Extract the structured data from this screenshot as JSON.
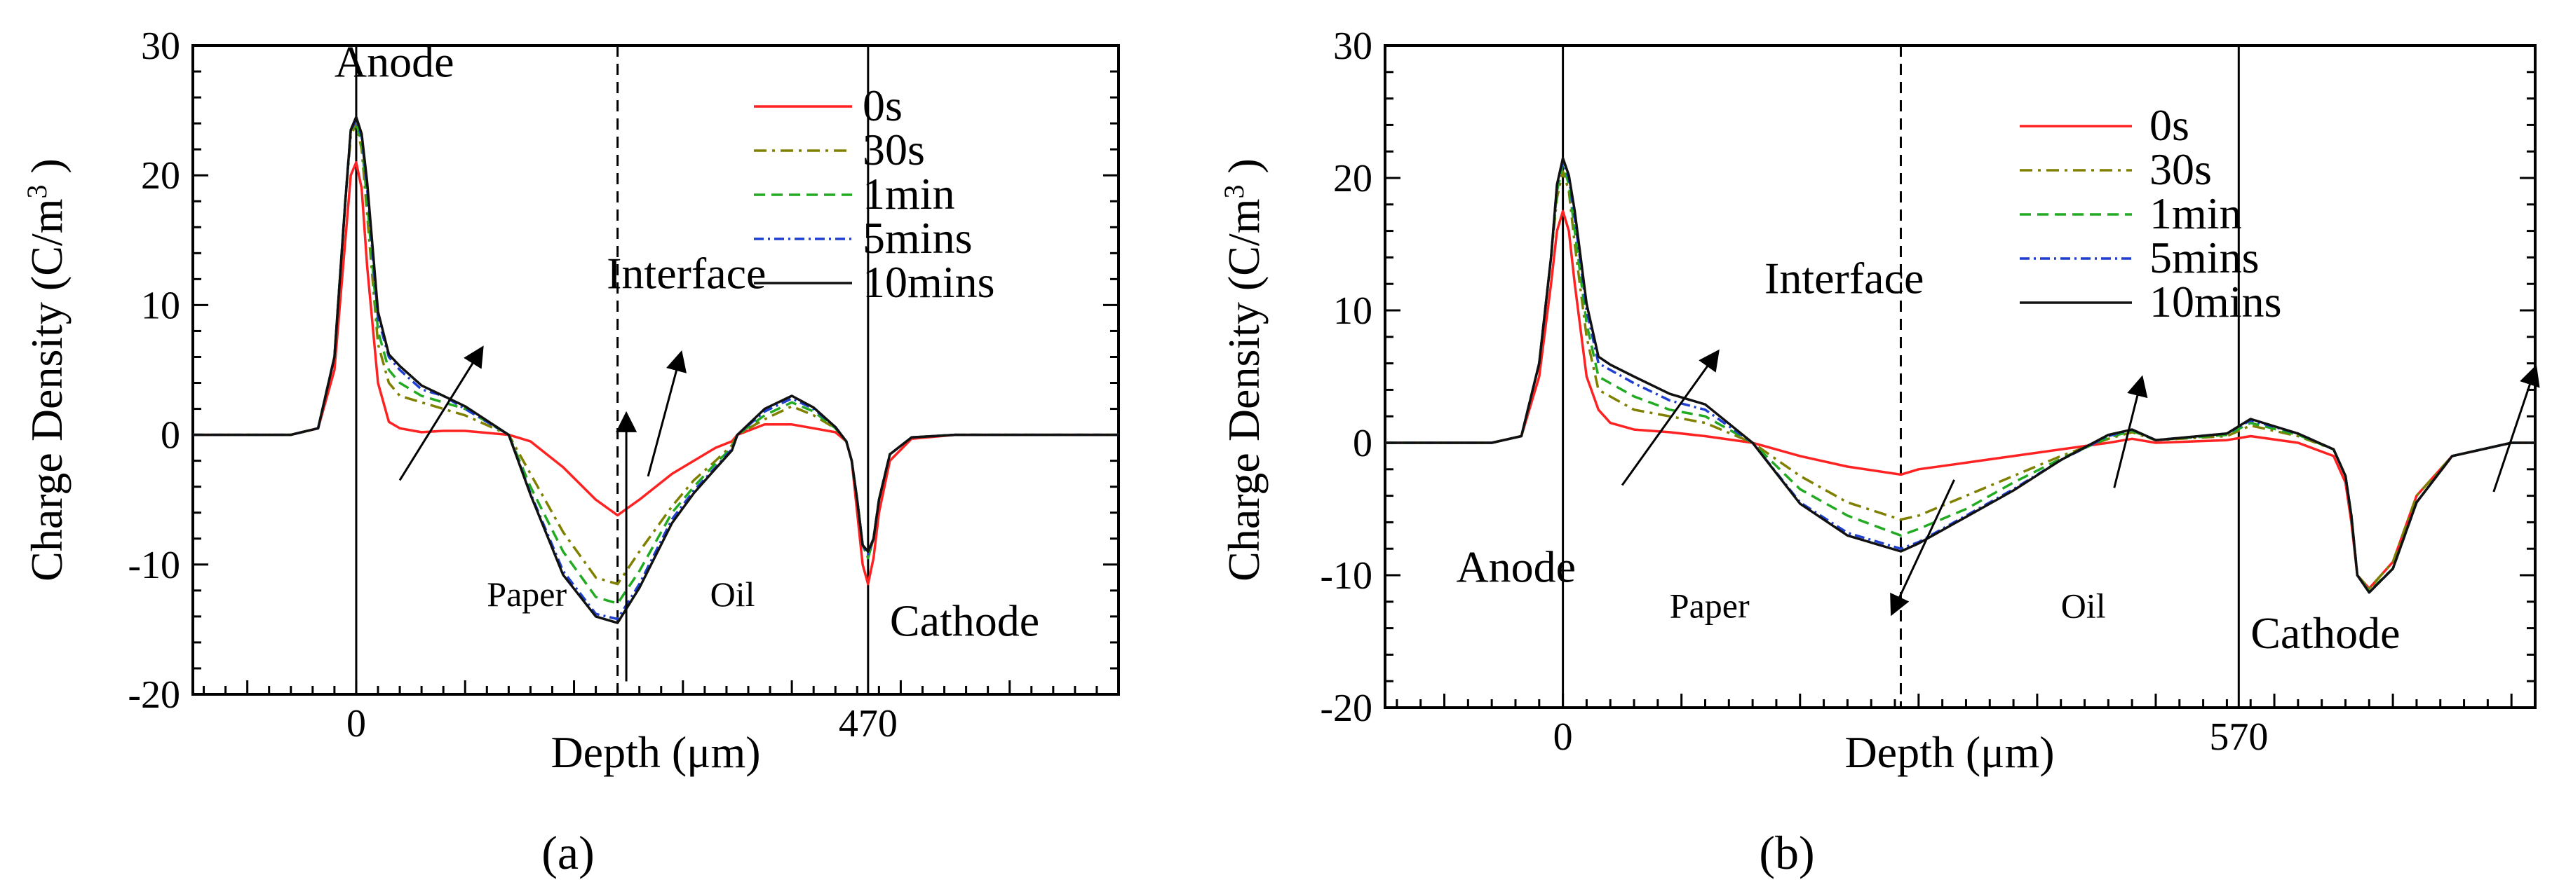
{
  "chart_data": [
    {
      "type": "line",
      "panel_caption": "(a)",
      "xlabel": "Depth (μm)",
      "ylabel": "Charge Density (C/m³ )",
      "ylabel_parts": {
        "main": "Charge Density (C/m",
        "sup": "3",
        "close": " )"
      },
      "xlim": [
        -150,
        700
      ],
      "ylim": [
        -20,
        30
      ],
      "x_tick_labels": [
        {
          "x": 0,
          "label": "0"
        },
        {
          "x": 470,
          "label": "470"
        }
      ],
      "y_ticks": [
        -20,
        -10,
        0,
        10,
        20,
        30
      ],
      "electrode_lines": [
        0,
        470
      ],
      "interface_x": 240,
      "annotations": [
        {
          "text": "Anode",
          "x": -20,
          "y": 27.6
        },
        {
          "text": "Interface",
          "x": 230,
          "y": 11.3
        },
        {
          "text": "Paper",
          "x": 120,
          "y": -13.2
        },
        {
          "text": "Oil",
          "x": 325,
          "y": -13.2
        },
        {
          "text": "Cathode",
          "x": 490,
          "y": -15.5
        }
      ],
      "arrows": [
        {
          "from": [
            40,
            -3.5
          ],
          "to": [
            115,
            6.6
          ]
        },
        {
          "from": [
            248,
            -19
          ],
          "to": [
            248,
            1.5
          ]
        },
        {
          "from": [
            268,
            -3.2
          ],
          "to": [
            298,
            6.2
          ]
        }
      ],
      "series": [
        {
          "name": "0s",
          "color": "#ff2222",
          "dash": "none",
          "x": [
            -150,
            -60,
            -35,
            -20,
            -10,
            -5,
            0,
            5,
            10,
            20,
            30,
            40,
            60,
            80,
            100,
            140,
            160,
            190,
            220,
            240,
            260,
            290,
            310,
            330,
            345,
            350,
            375,
            400,
            420,
            440,
            450,
            455,
            460,
            465,
            470,
            475,
            480,
            490,
            510,
            550,
            600,
            650,
            700
          ],
          "y": [
            0,
            0,
            0.5,
            5,
            15,
            20,
            21,
            19,
            13,
            4,
            1,
            0.5,
            0.2,
            0.3,
            0.3,
            0,
            -0.5,
            -2.5,
            -5,
            -6.2,
            -5,
            -3,
            -2,
            -1,
            -0.5,
            0,
            0.8,
            0.8,
            0.5,
            0.2,
            -0.5,
            -2,
            -6,
            -10,
            -11.5,
            -9.5,
            -6,
            -2,
            -0.3,
            0,
            0,
            0,
            0
          ]
        },
        {
          "name": "30s",
          "color": "#808000",
          "dash": "18,8,4,8",
          "x": [
            -150,
            -60,
            -35,
            -20,
            -10,
            -5,
            0,
            5,
            10,
            20,
            30,
            40,
            60,
            80,
            100,
            140,
            160,
            190,
            220,
            240,
            260,
            290,
            310,
            330,
            345,
            350,
            375,
            400,
            420,
            440,
            450,
            455,
            460,
            465,
            470,
            475,
            480,
            490,
            510,
            550,
            600,
            650,
            700
          ],
          "y": [
            0,
            0,
            0.5,
            6,
            18,
            23,
            24,
            22,
            17,
            7,
            4,
            3,
            2.5,
            2,
            1.5,
            0,
            -3,
            -7.5,
            -11,
            -11.5,
            -9,
            -5.5,
            -3.5,
            -2,
            -0.8,
            0,
            1.2,
            2.2,
            1.5,
            0.5,
            -0.5,
            -2,
            -5,
            -8.5,
            -9.5,
            -8,
            -5,
            -1.5,
            -0.2,
            0,
            0,
            0,
            0
          ]
        },
        {
          "name": "1min",
          "color": "#22aa22",
          "dash": "16,9",
          "x": [
            -150,
            -60,
            -35,
            -20,
            -10,
            -5,
            0,
            5,
            10,
            20,
            30,
            40,
            60,
            80,
            100,
            140,
            160,
            190,
            220,
            240,
            260,
            290,
            310,
            330,
            345,
            350,
            375,
            400,
            420,
            440,
            450,
            455,
            460,
            465,
            470,
            475,
            480,
            490,
            510,
            550,
            600,
            650,
            700
          ],
          "y": [
            0,
            0,
            0.5,
            6,
            18,
            23.5,
            24,
            22.5,
            18,
            8,
            5,
            4,
            3,
            2.5,
            2,
            0,
            -4,
            -9,
            -12.5,
            -13,
            -10.5,
            -6,
            -4,
            -2.2,
            -1,
            0,
            1.5,
            2.5,
            1.8,
            0.5,
            -0.5,
            -2,
            -5,
            -8.5,
            -9.5,
            -8,
            -5,
            -1.5,
            -0.2,
            0,
            0,
            0,
            0
          ]
        },
        {
          "name": "5mins",
          "color": "#1f3fd0",
          "dash": "14,6,3,6",
          "x": [
            -150,
            -60,
            -35,
            -20,
            -10,
            -5,
            0,
            5,
            10,
            20,
            30,
            40,
            60,
            80,
            100,
            140,
            160,
            190,
            220,
            240,
            260,
            290,
            310,
            330,
            345,
            350,
            375,
            400,
            420,
            440,
            450,
            455,
            460,
            465,
            470,
            475,
            480,
            490,
            510,
            550,
            600,
            650,
            700
          ],
          "y": [
            0,
            0,
            0.5,
            6,
            18,
            23.5,
            24.2,
            23,
            19,
            9,
            6,
            5,
            3.5,
            3,
            2,
            0,
            -4.5,
            -10.5,
            -13.8,
            -14.2,
            -11.5,
            -6.5,
            -4.3,
            -2.5,
            -1.1,
            0,
            1.8,
            2.8,
            2,
            0.6,
            -0.5,
            -2,
            -5,
            -8.5,
            -9.2,
            -8,
            -5,
            -1.5,
            -0.2,
            0,
            0,
            0,
            0
          ]
        },
        {
          "name": "10mins",
          "color": "#111111",
          "dash": "none",
          "x": [
            -150,
            -60,
            -35,
            -20,
            -10,
            -5,
            0,
            5,
            10,
            20,
            30,
            40,
            60,
            80,
            100,
            140,
            160,
            190,
            220,
            240,
            260,
            290,
            310,
            330,
            345,
            350,
            375,
            400,
            420,
            440,
            450,
            455,
            460,
            465,
            470,
            475,
            480,
            490,
            510,
            550,
            600,
            650,
            700
          ],
          "y": [
            0,
            0,
            0.5,
            6,
            18,
            23.5,
            24.5,
            23.2,
            19.5,
            9.5,
            6.2,
            5.3,
            3.8,
            3,
            2.2,
            0,
            -4.6,
            -10.8,
            -14,
            -14.5,
            -11.8,
            -6.8,
            -4.5,
            -2.6,
            -1.2,
            0,
            2,
            3,
            2.1,
            0.6,
            -0.5,
            -2,
            -5,
            -8.5,
            -9,
            -8,
            -5,
            -1.5,
            -0.2,
            0,
            0,
            0,
            0
          ]
        }
      ]
    },
    {
      "type": "line",
      "panel_caption": "(b)",
      "xlabel": "Depth (μm)",
      "ylabel": "Charge Density (C/m³ )",
      "ylabel_parts": {
        "main": "Charge Density (C/m",
        "sup": "3",
        "close": " )"
      },
      "xlim": [
        -150,
        820
      ],
      "ylim": [
        -20,
        30
      ],
      "x_tick_labels": [
        {
          "x": 0,
          "label": "0"
        },
        {
          "x": 570,
          "label": "570"
        }
      ],
      "y_ticks": [
        -20,
        -10,
        0,
        10,
        20,
        30
      ],
      "electrode_lines": [
        0,
        570
      ],
      "interface_x": 285,
      "annotations": [
        {
          "text": "Anode",
          "x": -90,
          "y": -10.5
        },
        {
          "text": "Interface",
          "x": 170,
          "y": 11.3
        },
        {
          "text": "Paper",
          "x": 90,
          "y": -13.2
        },
        {
          "text": "Oil",
          "x": 420,
          "y": -13.2
        },
        {
          "text": "Cathode",
          "x": 580,
          "y": -15.5
        }
      ],
      "arrows": [
        {
          "from": [
            50,
            -3.2
          ],
          "to": [
            130,
            6.8
          ]
        },
        {
          "from": [
            330,
            -2.8
          ],
          "to": [
            278,
            -12.8
          ]
        },
        {
          "from": [
            465,
            -3.4
          ],
          "to": [
            488,
            4.8
          ]
        },
        {
          "from": [
            785,
            -3.7
          ],
          "to": [
            820,
            5.6
          ]
        }
      ],
      "series": [
        {
          "name": "0s",
          "color": "#ff2222",
          "dash": "none",
          "x": [
            -150,
            -60,
            -35,
            -20,
            -10,
            -5,
            0,
            5,
            10,
            20,
            30,
            40,
            60,
            90,
            120,
            160,
            200,
            240,
            285,
            300,
            340,
            380,
            420,
            460,
            480,
            500,
            560,
            580,
            620,
            650,
            660,
            665,
            670,
            680,
            700,
            720,
            750,
            800,
            820
          ],
          "y": [
            0,
            0,
            0.5,
            5,
            12,
            16,
            17.5,
            16,
            12,
            5,
            2.5,
            1.5,
            1,
            0.8,
            0.5,
            0,
            -1,
            -1.8,
            -2.4,
            -2,
            -1.5,
            -1,
            -0.5,
            0,
            0.3,
            0,
            0.2,
            0.5,
            0,
            -1,
            -3,
            -6,
            -10,
            -11,
            -9,
            -4,
            -1,
            0,
            0
          ]
        },
        {
          "name": "30s",
          "color": "#808000",
          "dash": "18,8,4,8",
          "x": [
            -150,
            -60,
            -35,
            -20,
            -10,
            -5,
            0,
            5,
            10,
            20,
            30,
            40,
            60,
            90,
            120,
            160,
            200,
            240,
            285,
            300,
            340,
            380,
            420,
            460,
            480,
            500,
            560,
            580,
            620,
            650,
            660,
            665,
            670,
            680,
            700,
            720,
            750,
            800,
            820
          ],
          "y": [
            0,
            0,
            0.5,
            6,
            14,
            18.5,
            20.5,
            19,
            15,
            8,
            4,
            3.5,
            2.5,
            2,
            1.5,
            0,
            -2.5,
            -4.5,
            -5.8,
            -5.5,
            -4,
            -2.5,
            -1,
            0.3,
            0.8,
            0.2,
            0.5,
            1.3,
            0.5,
            -0.5,
            -2.5,
            -5.5,
            -10,
            -11,
            -9,
            -4,
            -1,
            0,
            0
          ]
        },
        {
          "name": "1min",
          "color": "#22aa22",
          "dash": "16,9",
          "x": [
            -150,
            -60,
            -35,
            -20,
            -10,
            -5,
            0,
            5,
            10,
            20,
            30,
            40,
            60,
            90,
            120,
            160,
            200,
            240,
            285,
            300,
            340,
            380,
            420,
            460,
            480,
            500,
            560,
            580,
            620,
            650,
            660,
            665,
            670,
            680,
            700,
            720,
            750,
            800,
            820
          ],
          "y": [
            0,
            0,
            0.5,
            6,
            14,
            19,
            21,
            19.5,
            16,
            9,
            5,
            4.5,
            3.5,
            2.5,
            2,
            0,
            -3.5,
            -5.5,
            -7,
            -6.5,
            -5,
            -3,
            -1.2,
            0.4,
            0.9,
            0.2,
            0.6,
            1.5,
            0.6,
            -0.5,
            -2.5,
            -5.5,
            -10,
            -11.2,
            -9.5,
            -4.5,
            -1,
            0,
            0
          ]
        },
        {
          "name": "5mins",
          "color": "#1f3fd0",
          "dash": "14,6,3,6",
          "x": [
            -150,
            -60,
            -35,
            -20,
            -10,
            -5,
            0,
            5,
            10,
            20,
            30,
            40,
            60,
            90,
            120,
            160,
            200,
            240,
            285,
            300,
            340,
            380,
            420,
            460,
            480,
            500,
            560,
            580,
            620,
            650,
            660,
            665,
            670,
            680,
            700,
            720,
            750,
            800,
            820
          ],
          "y": [
            0,
            0,
            0.5,
            6,
            14,
            19.5,
            21.2,
            20,
            17,
            10,
            6,
            5.5,
            4.5,
            3.2,
            2.5,
            0,
            -4.5,
            -6.8,
            -8,
            -7.5,
            -5.5,
            -3.5,
            -1.3,
            0.5,
            1,
            0.2,
            0.7,
            1.7,
            0.7,
            -0.5,
            -2.5,
            -5.5,
            -10,
            -11.3,
            -9.5,
            -4.5,
            -1,
            0,
            0
          ]
        },
        {
          "name": "10mins",
          "color": "#111111",
          "dash": "none",
          "x": [
            -150,
            -60,
            -35,
            -20,
            -10,
            -5,
            0,
            5,
            10,
            20,
            30,
            40,
            60,
            90,
            120,
            160,
            200,
            240,
            285,
            300,
            340,
            380,
            420,
            460,
            480,
            500,
            560,
            580,
            620,
            650,
            660,
            665,
            670,
            680,
            700,
            720,
            750,
            800,
            820
          ],
          "y": [
            0,
            0,
            0.5,
            6,
            14,
            19.5,
            21.5,
            20.2,
            17.5,
            10.5,
            6.5,
            5.9,
            5,
            3.7,
            2.9,
            0,
            -4.6,
            -7,
            -8.2,
            -7.6,
            -5.6,
            -3.6,
            -1.3,
            0.6,
            1,
            0.2,
            0.7,
            1.8,
            0.7,
            -0.5,
            -2.5,
            -5.5,
            -10,
            -11.3,
            -9.5,
            -4.5,
            -1,
            0,
            0
          ]
        }
      ]
    }
  ]
}
